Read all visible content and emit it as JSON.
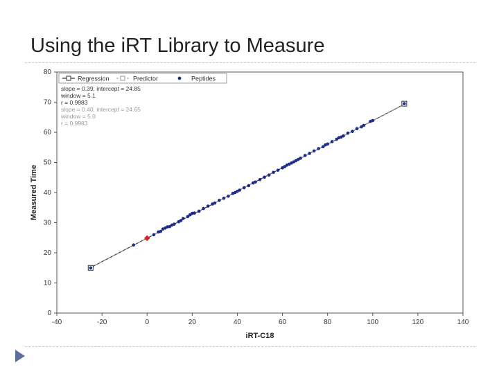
{
  "slide": {
    "title": "Using the iRT Library to Measure"
  },
  "chart_data": {
    "type": "scatter",
    "xlabel": "iRT-C18",
    "ylabel": "Measured Time",
    "xlim": [
      -40,
      140
    ],
    "ylim": [
      0,
      80
    ],
    "xticks": [
      "-40",
      "-20",
      "0",
      "20",
      "40",
      "60",
      "80",
      "100",
      "120",
      "140"
    ],
    "yticks": [
      "0",
      "10",
      "20",
      "30",
      "40",
      "50",
      "60",
      "70",
      "80"
    ],
    "grid": false,
    "legend": {
      "placement": "top-left",
      "entries": [
        "Regression",
        "Predictor",
        "Peptides"
      ]
    },
    "annotations": {
      "regression": [
        "slope = 0.39, intercept = 24.85",
        "window = 5.1",
        "r = 0.9983"
      ],
      "predictor": [
        "slope = 0.40, intercept = 24.65",
        "window = 5.0",
        "r = 0.9983"
      ]
    },
    "regression_line": {
      "slope": 0.39,
      "intercept": 24.85,
      "x_range": [
        -25,
        114
      ]
    },
    "highlight_point": {
      "x": 0,
      "y": 24.85,
      "color": "#dd2222"
    },
    "endpoint_markers": [
      {
        "x": -25,
        "y": 15.0
      },
      {
        "x": 114,
        "y": 69.5
      }
    ],
    "series": [
      {
        "name": "Peptides",
        "color": "#1f2d8a",
        "points": [
          [
            -25,
            15.0
          ],
          [
            -6,
            22.6
          ],
          [
            3,
            26.0
          ],
          [
            5,
            26.9
          ],
          [
            6,
            27.1
          ],
          [
            7,
            27.9
          ],
          [
            8,
            28.2
          ],
          [
            9,
            28.6
          ],
          [
            10,
            28.7
          ],
          [
            11,
            29.2
          ],
          [
            12,
            29.5
          ],
          [
            14,
            30.3
          ],
          [
            15,
            30.7
          ],
          [
            16,
            31.4
          ],
          [
            18,
            32.0
          ],
          [
            19,
            32.6
          ],
          [
            20,
            33.1
          ],
          [
            21,
            33.2
          ],
          [
            23,
            33.8
          ],
          [
            25,
            34.7
          ],
          [
            27,
            35.5
          ],
          [
            29,
            36.2
          ],
          [
            30,
            36.5
          ],
          [
            32,
            37.4
          ],
          [
            34,
            38.1
          ],
          [
            36,
            38.8
          ],
          [
            38,
            39.7
          ],
          [
            39,
            40.0
          ],
          [
            40,
            40.4
          ],
          [
            41,
            40.8
          ],
          [
            43,
            41.6
          ],
          [
            45,
            42.3
          ],
          [
            47,
            43.2
          ],
          [
            48,
            43.5
          ],
          [
            50,
            44.3
          ],
          [
            52,
            45.1
          ],
          [
            54,
            45.8
          ],
          [
            56,
            46.7
          ],
          [
            58,
            47.4
          ],
          [
            60,
            48.2
          ],
          [
            61,
            48.6
          ],
          [
            62,
            49.1
          ],
          [
            63,
            49.4
          ],
          [
            64,
            49.8
          ],
          [
            65,
            50.2
          ],
          [
            66,
            50.6
          ],
          [
            67,
            51.0
          ],
          [
            68,
            51.4
          ],
          [
            70,
            52.3
          ],
          [
            72,
            53.0
          ],
          [
            74,
            53.8
          ],
          [
            76,
            54.6
          ],
          [
            78,
            55.2
          ],
          [
            79,
            55.8
          ],
          [
            80,
            56.1
          ],
          [
            82,
            56.9
          ],
          [
            84,
            57.7
          ],
          [
            85,
            58.2
          ],
          [
            86,
            58.4
          ],
          [
            87,
            58.8
          ],
          [
            89,
            59.7
          ],
          [
            91,
            60.3
          ],
          [
            93,
            61.2
          ],
          [
            95,
            61.8
          ],
          [
            96,
            62.3
          ],
          [
            99,
            63.6
          ],
          [
            100,
            63.9
          ],
          [
            114,
            69.5
          ]
        ]
      }
    ]
  }
}
